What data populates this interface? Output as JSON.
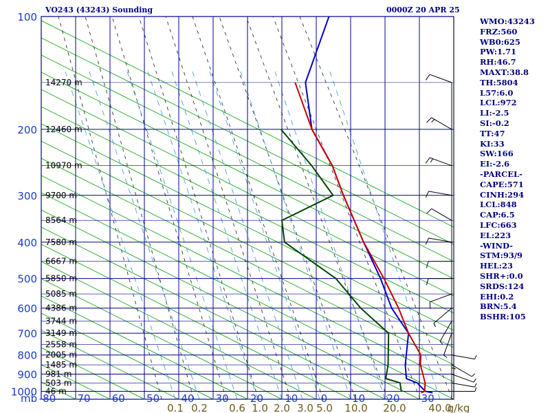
{
  "header": {
    "title": "VO243 (43243) Sounding",
    "datetime": "0000Z 20 APR 25"
  },
  "indices": [
    "WMO:43243",
    "FRZ:560",
    "WB0:625",
    "PW:1.71",
    "RH:46.7",
    "MAXT:38.8",
    "TH:5804",
    "L57:6.0",
    "LCL:972",
    "LI:-2.5",
    "SI:-0.2",
    "TT:47",
    "KI:33",
    "SW:166",
    "EI:-2.6",
    "-PARCEL-",
    "CAPE:571",
    "CINH:294",
    "LCL:848",
    "CAP:6.5",
    "LFC:663",
    "EL:223",
    "-WIND-",
    "STM:93/9",
    "HEL:23",
    "SHR+:0.0",
    "SRDS:124",
    "EHI:0.2",
    "BRN:5.4",
    "BSHR:105"
  ],
  "colors": {
    "grid": "#00008b",
    "dry_adiabat": "#22aa22",
    "moist_adiabat": "#333333",
    "mixing_ratio": "#4a9fdf",
    "temperature": "#0000cc",
    "dewpoint": "#004400",
    "parcel": "#cc0000",
    "labels": "#1a3cc8"
  },
  "chart_data": {
    "type": "line",
    "x_axis": {
      "unit_label": "mb",
      "ticks": [
        "-80",
        "-70",
        "-60",
        "-50",
        "-40",
        "-30",
        "-20",
        "-10",
        "0",
        "10",
        "20",
        "30"
      ],
      "range": [
        -80,
        35
      ]
    },
    "y_axis": {
      "scale": "log",
      "range": [
        1050,
        100
      ],
      "ticks": [
        "100",
        "200",
        "300",
        "400",
        "500",
        "600",
        "700",
        "800",
        "900",
        "1000"
      ]
    },
    "height_labels": [
      {
        "p": 150,
        "text": "14270 m"
      },
      {
        "p": 200,
        "text": "12460 m"
      },
      {
        "p": 250,
        "text": "10970 m"
      },
      {
        "p": 300,
        "text": "9700 m"
      },
      {
        "p": 350,
        "text": "8564 m"
      },
      {
        "p": 400,
        "text": "7580 m"
      },
      {
        "p": 450,
        "text": "6667 m"
      },
      {
        "p": 500,
        "text": "5850 m"
      },
      {
        "p": 550,
        "text": "5085 m"
      },
      {
        "p": 600,
        "text": "4386 m"
      },
      {
        "p": 650,
        "text": "3744 m"
      },
      {
        "p": 700,
        "text": "3149 m"
      },
      {
        "p": 750,
        "text": "2558 m"
      },
      {
        "p": 800,
        "text": "2005 m"
      },
      {
        "p": 850,
        "text": "1485 m"
      },
      {
        "p": 900,
        "text": "981 m"
      },
      {
        "p": 950,
        "text": "503 m"
      },
      {
        "p": 1000,
        "text": "46 m"
      }
    ],
    "mixing_ratio_labels": [
      "0.1",
      "0.2",
      "0.6",
      "1.0",
      "2.0",
      "3.0",
      "5.0",
      "10.0",
      "20.0",
      "40.0",
      "g/kg"
    ],
    "mixing_ratio_values": [
      0.1,
      0.2,
      0.6,
      1.0,
      2.0,
      3.0,
      5.0,
      10.0,
      20.0,
      40.0
    ],
    "series": [
      {
        "key": "temperature",
        "points": [
          [
            1009,
            31.4
          ],
          [
            1000,
            29
          ],
          [
            950,
            25
          ],
          [
            925,
            21
          ],
          [
            850,
            18
          ],
          [
            700,
            12.8
          ],
          [
            600,
            3
          ],
          [
            500,
            -6
          ],
          [
            400,
            -18
          ],
          [
            300,
            -33
          ],
          [
            250,
            -42
          ],
          [
            200,
            -55
          ],
          [
            150,
            -66
          ],
          [
            100,
            -72
          ]
        ]
      },
      {
        "key": "dewpoint",
        "points": [
          [
            1000,
            22
          ],
          [
            950,
            20
          ],
          [
            925,
            15
          ],
          [
            850,
            13
          ],
          [
            700,
            7
          ],
          [
            600,
            -6
          ],
          [
            500,
            -19
          ],
          [
            400,
            -41
          ],
          [
            350,
            -46
          ],
          [
            300,
            -36
          ],
          [
            250,
            -48
          ],
          [
            200,
            -64
          ]
        ]
      },
      {
        "key": "parcel",
        "points": [
          [
            1009,
            28
          ],
          [
            1000,
            28.8
          ],
          [
            950,
            27.3
          ],
          [
            850,
            22.4
          ],
          [
            800,
            20.6
          ],
          [
            700,
            12.8
          ],
          [
            600,
            5
          ],
          [
            500,
            -5
          ],
          [
            400,
            -18
          ],
          [
            300,
            -33
          ],
          [
            250,
            -42
          ],
          [
            200,
            -55
          ],
          [
            150,
            -69
          ]
        ]
      }
    ],
    "wind_barbs": [
      {
        "p": 1000,
        "dir": 90,
        "spd": 5
      },
      {
        "p": 950,
        "dir": 100,
        "spd": 5
      },
      {
        "p": 900,
        "dir": 110,
        "spd": 5
      },
      {
        "p": 850,
        "dir": 120,
        "spd": 5
      },
      {
        "p": 800,
        "dir": 100,
        "spd": 5
      },
      {
        "p": 750,
        "dir": 180,
        "spd": 5
      },
      {
        "p": 700,
        "dir": 200,
        "spd": 5
      },
      {
        "p": 650,
        "dir": 210,
        "spd": 5
      },
      {
        "p": 600,
        "dir": 230,
        "spd": 5
      },
      {
        "p": 550,
        "dir": 250,
        "spd": 10
      },
      {
        "p": 500,
        "dir": 270,
        "spd": 10
      },
      {
        "p": 450,
        "dir": 270,
        "spd": 10
      },
      {
        "p": 400,
        "dir": 280,
        "spd": 10
      },
      {
        "p": 350,
        "dir": 300,
        "spd": 10
      },
      {
        "p": 300,
        "dir": 280,
        "spd": 10
      },
      {
        "p": 250,
        "dir": 290,
        "spd": 15
      },
      {
        "p": 200,
        "dir": 300,
        "spd": 15
      },
      {
        "p": 150,
        "dir": 290,
        "spd": 10
      }
    ]
  }
}
